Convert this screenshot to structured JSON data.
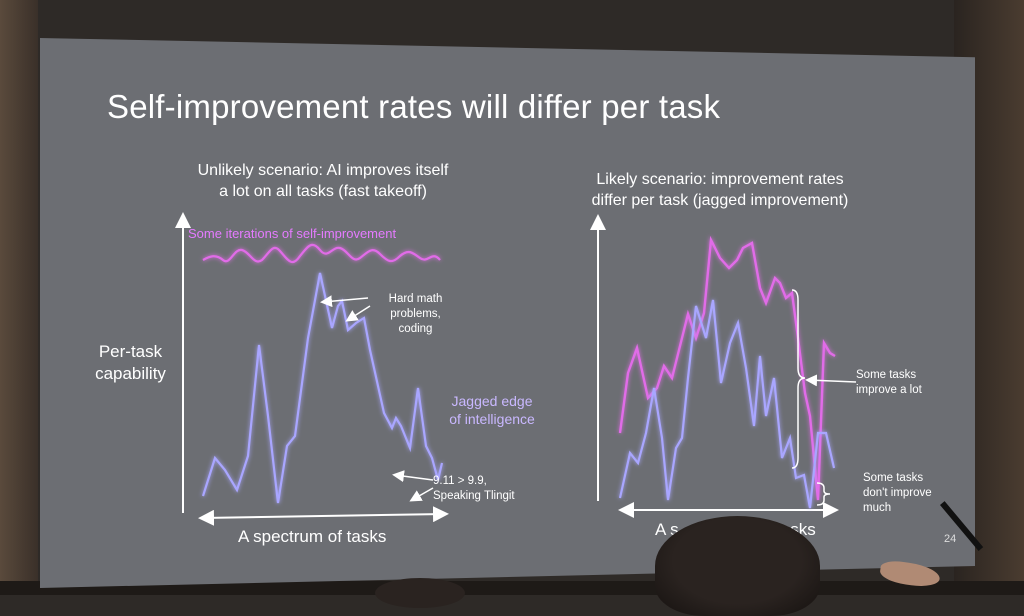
{
  "slide": {
    "title": "Self-improvement rates will differ per task",
    "page_number": "24"
  },
  "left_panel": {
    "subtitle_line1": "Unlikely scenario: AI improves itself",
    "subtitle_line2": "a lot on all tasks (fast takeoff)",
    "y_axis_label_line1": "Per-task",
    "y_axis_label_line2": "capability",
    "x_axis_label": "A spectrum of tasks",
    "iterations_label": "Some iterations of self-improvement",
    "jagged_label_line1": "Jagged edge",
    "jagged_label_line2": "of intelligence",
    "hard_math_line1": "Hard math",
    "hard_math_line2": "problems,",
    "hard_math_line3": "coding",
    "easy_fail_line1": "9.11 > 9.9,",
    "easy_fail_line2": "Speaking Tlingit"
  },
  "right_panel": {
    "subtitle_line1": "Likely scenario: improvement rates",
    "subtitle_line2": "differ per task (jagged improvement)",
    "x_axis_label_visible": "A s",
    "x_axis_label_visible_end": "tasks",
    "improve_lot_line1": "Some tasks",
    "improve_lot_line2": "improve a lot",
    "not_much_line1": "Some tasks",
    "not_much_line2": "don't improve",
    "not_much_line3": "much"
  },
  "colors": {
    "screen": "#6c6e73",
    "blue_line": "#a9a6ff",
    "pink_line": "#e16ce8",
    "text": "#ffffff"
  }
}
